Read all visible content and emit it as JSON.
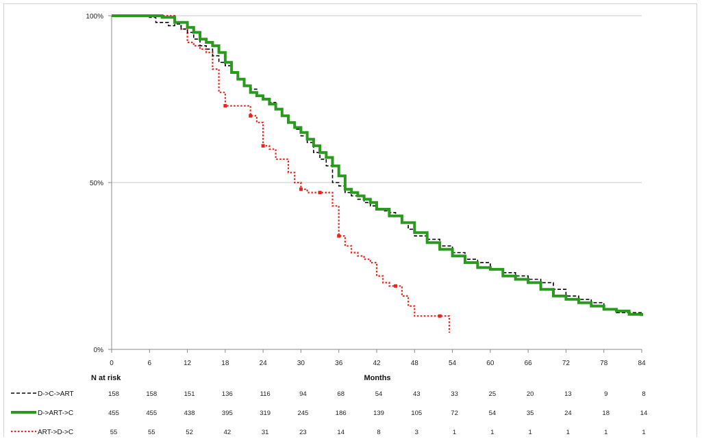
{
  "chart_data": {
    "type": "line",
    "title": "",
    "xlabel": "Months",
    "ylabel": "",
    "xlim": [
      0,
      84
    ],
    "ylim": [
      0,
      100
    ],
    "x_ticks": [
      "0",
      "6",
      "12",
      "18",
      "24",
      "30",
      "36",
      "42",
      "48",
      "54",
      "60",
      "66",
      "72",
      "78",
      "84"
    ],
    "y_ticks": [
      "0%",
      "50%",
      "100%"
    ],
    "grid": "horizontal",
    "risk_table_label": "N at risk",
    "series": [
      {
        "name": "D->C->ART",
        "color": "#000000",
        "style": "dashed",
        "x": [
          0,
          6,
          7,
          9,
          10,
          11,
          12,
          13,
          14,
          15,
          16,
          17,
          18,
          19,
          20,
          21,
          22,
          23,
          24,
          25,
          26,
          27,
          28,
          29,
          30,
          31,
          32,
          33,
          34,
          35,
          36,
          37,
          38,
          39,
          40,
          41,
          42,
          43,
          44,
          45,
          46,
          47,
          48,
          50,
          52,
          54,
          56,
          58,
          60,
          62,
          64,
          66,
          68,
          70,
          72,
          74,
          76,
          78,
          80,
          82,
          84
        ],
        "y": [
          100,
          99.5,
          98,
          97,
          97.5,
          96,
          95,
          93,
          91,
          90,
          88,
          86,
          85,
          83,
          81,
          79,
          78,
          76,
          75,
          74,
          72,
          70,
          68,
          66,
          64,
          62,
          59,
          57,
          55,
          50,
          49,
          47,
          46,
          45,
          44,
          43,
          42,
          41.5,
          41,
          40,
          38,
          36,
          34,
          33,
          31,
          29,
          27,
          26,
          24,
          23,
          22,
          21,
          20,
          18,
          16,
          15,
          14,
          12,
          11,
          11,
          10.5
        ]
      },
      {
        "name": "D->ART->C",
        "color": "#2a9a1f",
        "style": "solid",
        "x": [
          0,
          8,
          10,
          12,
          13,
          14,
          15,
          16,
          17,
          18,
          19,
          20,
          21,
          22,
          23,
          24,
          25,
          26,
          27,
          28,
          29,
          30,
          31,
          32,
          33,
          34,
          35,
          36,
          37,
          38,
          39,
          40,
          41,
          42,
          44,
          46,
          48,
          50,
          52,
          54,
          56,
          58,
          60,
          62,
          64,
          66,
          68,
          70,
          72,
          74,
          76,
          78,
          80,
          82,
          84
        ],
        "y": [
          100,
          99.5,
          98,
          96.5,
          95,
          93,
          92,
          91,
          89,
          86,
          83,
          81,
          79,
          77,
          76,
          75,
          73.5,
          72,
          70,
          68,
          66.5,
          65,
          63,
          61,
          59,
          57.5,
          55,
          52,
          48,
          47,
          46,
          45,
          44,
          42,
          40,
          38,
          35,
          32,
          30,
          28,
          26,
          24.5,
          24,
          22,
          21,
          20,
          18,
          16,
          15,
          14,
          13,
          12,
          11.5,
          10.5,
          10
        ]
      },
      {
        "name": "ART->D->C",
        "color": "#e8241c",
        "style": "dotted",
        "x": [
          0,
          9,
          10,
          11,
          12,
          13,
          14,
          15,
          16,
          17,
          18,
          19,
          20,
          21,
          22,
          23,
          24,
          25,
          26,
          27,
          28,
          29,
          30,
          31,
          32,
          33,
          34,
          35,
          36,
          37,
          38,
          39,
          40,
          41,
          42,
          43,
          44,
          45,
          46,
          47,
          48,
          49,
          50,
          51,
          52,
          53,
          53.5
        ],
        "y": [
          100,
          100,
          98,
          96,
          92,
          91,
          90,
          89,
          84,
          77,
          73,
          73,
          73,
          73,
          70,
          68,
          61,
          60,
          57,
          57,
          53,
          50,
          48,
          47,
          47,
          47,
          47,
          43,
          34,
          31,
          29,
          28,
          27,
          26,
          22,
          20,
          19,
          19,
          16,
          13,
          10,
          10,
          10,
          10,
          10,
          10,
          5
        ]
      }
    ],
    "at_risk": [
      {
        "name": "D->C->ART",
        "values": [
          "158",
          "158",
          "151",
          "136",
          "116",
          "94",
          "68",
          "54",
          "43",
          "33",
          "25",
          "20",
          "13",
          "9",
          "8"
        ]
      },
      {
        "name": "D->ART->C",
        "values": [
          "455",
          "455",
          "438",
          "395",
          "319",
          "245",
          "186",
          "139",
          "105",
          "72",
          "54",
          "35",
          "24",
          "18",
          "14"
        ]
      },
      {
        "name": "ART->D->C",
        "values": [
          "55",
          "55",
          "52",
          "42",
          "31",
          "23",
          "14",
          "8",
          "3",
          "1",
          "1",
          "1",
          "1",
          "1",
          "1"
        ]
      }
    ]
  }
}
